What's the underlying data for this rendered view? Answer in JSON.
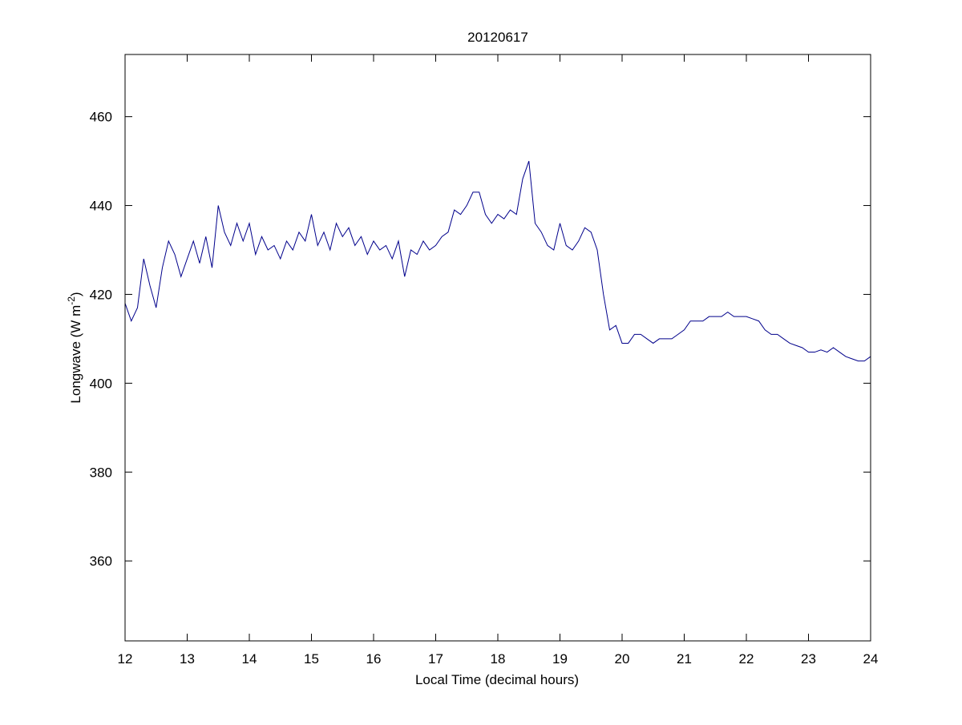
{
  "chart_data": {
    "type": "line",
    "title": "20120617",
    "x_label": "Local Time (decimal hours)",
    "y_label": [
      "Longwave (W m",
      "-2",
      ")"
    ],
    "x": [
      12.0,
      12.1,
      12.2,
      12.3,
      12.4,
      12.5,
      12.6,
      12.7,
      12.8,
      12.9,
      13.0,
      13.1,
      13.2,
      13.3,
      13.4,
      13.5,
      13.6,
      13.7,
      13.8,
      13.9,
      14.0,
      14.1,
      14.2,
      14.3,
      14.4,
      14.5,
      14.6,
      14.7,
      14.8,
      14.9,
      15.0,
      15.1,
      15.2,
      15.3,
      15.4,
      15.5,
      15.6,
      15.7,
      15.8,
      15.9,
      16.0,
      16.1,
      16.2,
      16.3,
      16.4,
      16.5,
      16.6,
      16.7,
      16.8,
      16.9,
      17.0,
      17.1,
      17.2,
      17.3,
      17.4,
      17.5,
      17.6,
      17.7,
      17.8,
      17.9,
      18.0,
      18.1,
      18.2,
      18.3,
      18.4,
      18.5,
      18.6,
      18.7,
      18.8,
      18.9,
      19.0,
      19.1,
      19.2,
      19.3,
      19.4,
      19.5,
      19.6,
      19.7,
      19.8,
      19.9,
      20.0,
      20.1,
      20.2,
      20.3,
      20.4,
      20.5,
      20.6,
      20.7,
      20.8,
      20.9,
      21.0,
      21.1,
      21.2,
      21.3,
      21.4,
      21.5,
      21.6,
      21.7,
      21.8,
      21.9,
      22.0,
      22.1,
      22.2,
      22.3,
      22.4,
      22.5,
      22.6,
      22.7,
      22.8,
      22.9,
      23.0,
      23.1,
      23.2,
      23.3,
      23.4,
      23.5,
      23.6,
      23.7,
      23.8,
      23.9,
      24.0
    ],
    "series": [
      {
        "name": "Longwave",
        "color": "#00008b",
        "values": [
          418,
          414,
          417,
          428,
          422,
          417,
          426,
          432,
          429,
          424,
          428,
          432,
          427,
          433,
          426,
          440,
          434,
          431,
          436,
          432,
          436,
          429,
          433,
          430,
          431,
          428,
          432,
          430,
          434,
          432,
          438,
          431,
          434,
          430,
          436,
          433,
          435,
          431,
          433,
          429,
          432,
          430,
          431,
          428,
          432,
          424,
          430,
          429,
          432,
          430,
          431,
          433,
          434,
          439,
          438,
          440,
          443,
          443,
          438,
          436,
          438,
          437,
          439,
          438,
          446,
          450,
          436,
          434,
          431,
          430,
          436,
          431,
          430,
          432,
          435,
          434,
          430,
          420,
          412,
          413,
          409,
          409,
          411,
          411,
          410,
          409,
          410,
          410,
          410,
          411,
          412,
          414,
          414,
          414,
          415,
          415,
          415,
          416,
          415,
          415,
          415,
          414.5,
          414,
          412,
          411,
          411,
          410,
          409,
          408.5,
          408,
          407,
          407,
          407.5,
          407,
          408,
          407,
          406,
          405.5,
          405,
          405,
          406
        ]
      }
    ],
    "xlim": [
      12,
      24
    ],
    "xticks": [
      12,
      13,
      14,
      15,
      16,
      17,
      18,
      19,
      20,
      21,
      22,
      23,
      24
    ],
    "ylim": [
      342,
      474
    ],
    "yticks": [
      360,
      380,
      400,
      420,
      440,
      460
    ]
  }
}
